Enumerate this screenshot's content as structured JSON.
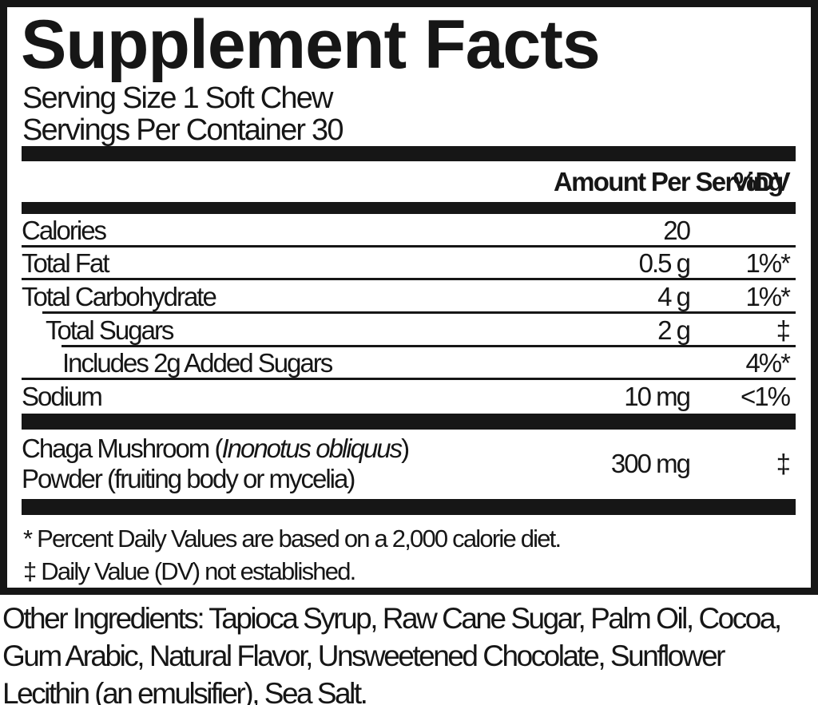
{
  "colors": {
    "ink": "#161616",
    "background": "#ffffff"
  },
  "label": {
    "title": "Supplement Facts",
    "serving_size": "Serving Size 1 Soft Chew",
    "servings_per_container": "Servings Per Container 30",
    "header": {
      "amount": "Amount Per Serving",
      "dv": "%DV"
    },
    "rows": [
      {
        "label": "Calories",
        "amount": "20",
        "dv": ""
      },
      {
        "label": "Total Fat",
        "amount": "0.5 g",
        "dv": "1%*"
      },
      {
        "label": "Total Carbohydrate",
        "amount": "4 g",
        "dv": "1%*"
      },
      {
        "label": "Total Sugars",
        "amount": "2 g",
        "dv": "‡"
      },
      {
        "label": "Includes 2g Added Sugars",
        "amount": "",
        "dv": "4%*"
      },
      {
        "label": "Sodium",
        "amount": "10 mg",
        "dv": "<1%"
      }
    ],
    "ingredient_row": {
      "name_line1_prefix": "Chaga Mushroom (",
      "name_line1_italic": "Inonotus obliquus",
      "name_line1_suffix": ")",
      "name_line2": "Powder (fruiting body or mycelia)",
      "amount": "300 mg",
      "dv": "‡"
    },
    "footnotes": [
      "* Percent Daily Values are based on a 2,000 calorie diet.",
      "‡ Daily Value (DV) not established."
    ],
    "other_ingredients_lines": [
      "Other Ingredients: Tapioca Syrup, Raw Cane Sugar, Palm Oil, Cocoa,",
      "Gum Arabic, Natural Flavor, Unsweetened Chocolate, Sunflower",
      "Lecithin (an emulsifier), Sea Salt."
    ]
  }
}
